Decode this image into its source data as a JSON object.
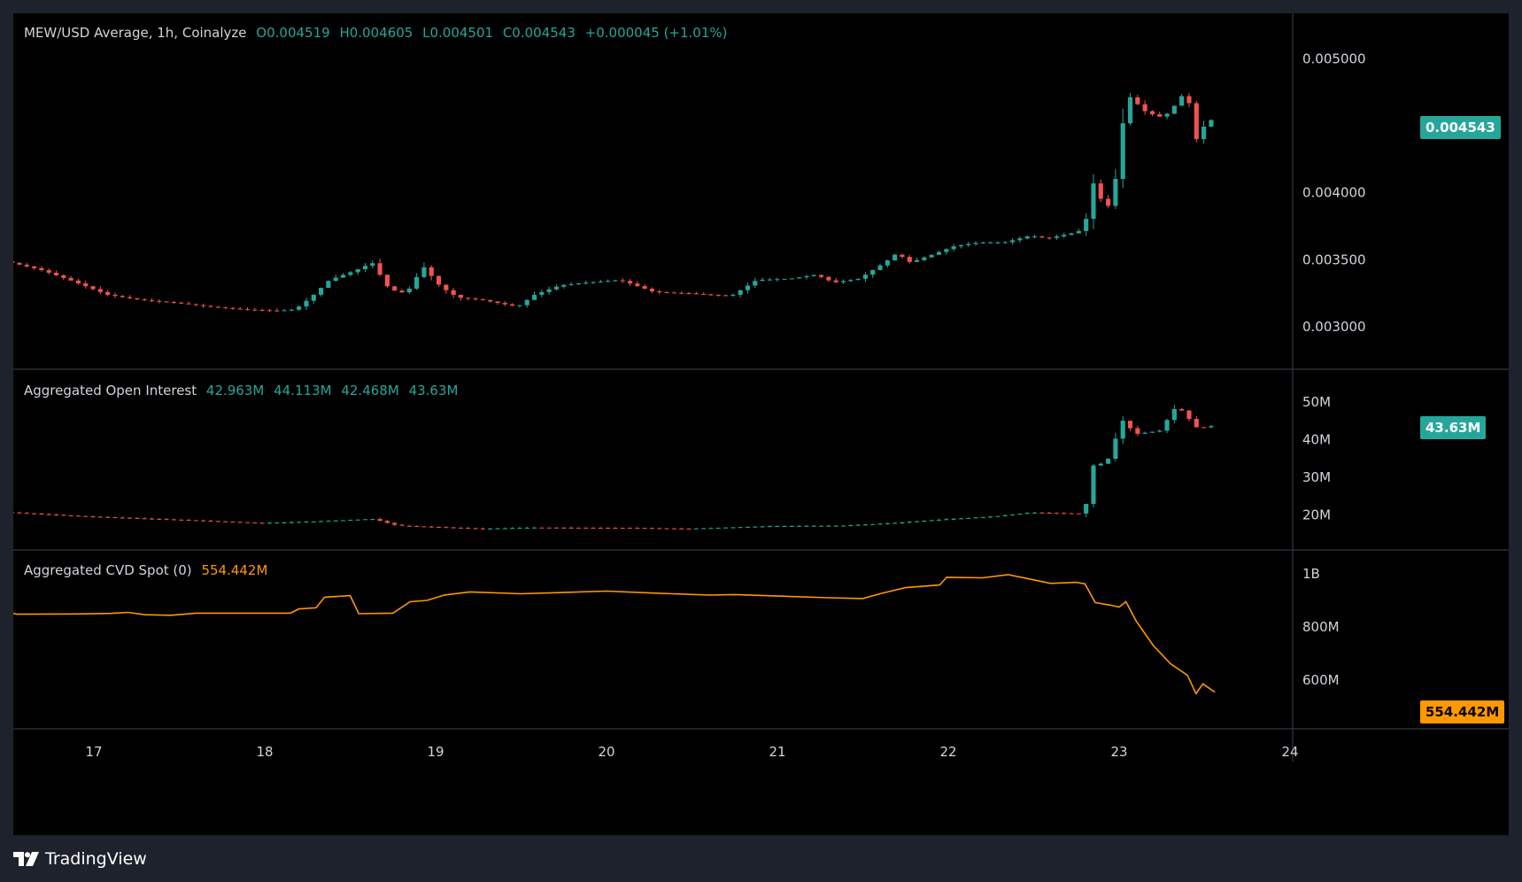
{
  "colors": {
    "up": "#26a69a",
    "down": "#ef5350",
    "cvd": "#ff9800",
    "background": "#000000",
    "frame": "#1e222d",
    "grid": "#2a2e39",
    "text": "#d1d4dc"
  },
  "main_pane": {
    "title": "MEW/USD Average, 1h, Coinalyze",
    "open": "O0.004519",
    "high": "H0.004605",
    "low": "L0.004501",
    "close": "C0.004543",
    "change": "+0.000045 (+1.01%)",
    "last_price": "0.004543"
  },
  "oi_pane": {
    "title": "Aggregated Open Interest",
    "open": "42.963M",
    "high": "44.113M",
    "low": "42.468M",
    "close": "43.63M",
    "last_value": "43.63M"
  },
  "cvd_pane": {
    "title": "Aggregated CVD Spot (0)",
    "value": "554.442M",
    "last_value": "554.442M"
  },
  "branding": {
    "name": "TradingView",
    "logo_icon": "tradingview-logo-icon"
  },
  "chart_data": [
    {
      "type": "candlestick",
      "title": "MEW/USD Average, 1h, Coinalyze",
      "ylim": [
        0.00275,
        0.00522
      ],
      "y_ticks": [
        {
          "value": 0.005,
          "label": "0.005000"
        },
        {
          "value": 0.004,
          "label": "0.004000"
        },
        {
          "value": 0.0035,
          "label": "0.003500"
        },
        {
          "value": 0.003,
          "label": "0.003000"
        }
      ],
      "x_ticks": [
        {
          "day": 17,
          "label": "17"
        },
        {
          "day": 18,
          "label": "18"
        },
        {
          "day": 19,
          "label": "19"
        },
        {
          "day": 20,
          "label": "20"
        },
        {
          "day": 21,
          "label": "21"
        },
        {
          "day": 22,
          "label": "22"
        },
        {
          "day": 23,
          "label": "23"
        },
        {
          "day": 24,
          "label": "24"
        }
      ],
      "x_start_day": 16.5,
      "close_anchors": [
        [
          16.5,
          0.00349
        ],
        [
          16.7,
          0.00343
        ],
        [
          16.9,
          0.00334
        ],
        [
          17.1,
          0.00324
        ],
        [
          17.3,
          0.0032
        ],
        [
          17.5,
          0.00318
        ],
        [
          17.7,
          0.00315
        ],
        [
          17.9,
          0.00313
        ],
        [
          18.1,
          0.00312
        ],
        [
          18.2,
          0.00313
        ],
        [
          18.3,
          0.00323
        ],
        [
          18.4,
          0.00335
        ],
        [
          18.55,
          0.00342
        ],
        [
          18.65,
          0.00348
        ],
        [
          18.75,
          0.00328
        ],
        [
          18.85,
          0.00325
        ],
        [
          18.95,
          0.00345
        ],
        [
          19.05,
          0.0033
        ],
        [
          19.15,
          0.00322
        ],
        [
          19.3,
          0.0032
        ],
        [
          19.5,
          0.00315
        ],
        [
          19.6,
          0.00324
        ],
        [
          19.75,
          0.00331
        ],
        [
          19.9,
          0.00333
        ],
        [
          20.1,
          0.00335
        ],
        [
          20.3,
          0.00326
        ],
        [
          20.5,
          0.00325
        ],
        [
          20.75,
          0.00323
        ],
        [
          20.9,
          0.00335
        ],
        [
          21.1,
          0.00336
        ],
        [
          21.25,
          0.00339
        ],
        [
          21.35,
          0.00333
        ],
        [
          21.5,
          0.00336
        ],
        [
          21.65,
          0.00348
        ],
        [
          21.72,
          0.00355
        ],
        [
          21.8,
          0.00348
        ],
        [
          21.95,
          0.00355
        ],
        [
          22.05,
          0.0036
        ],
        [
          22.2,
          0.00363
        ],
        [
          22.35,
          0.00363
        ],
        [
          22.5,
          0.00368
        ],
        [
          22.6,
          0.00366
        ],
        [
          22.75,
          0.0037
        ],
        [
          22.82,
          0.00373
        ],
        [
          22.86,
          0.0041
        ],
        [
          22.92,
          0.00394
        ],
        [
          22.96,
          0.0039
        ],
        [
          23.0,
          0.0041
        ],
        [
          23.04,
          0.0045
        ],
        [
          23.08,
          0.00472
        ],
        [
          23.18,
          0.0046
        ],
        [
          23.28,
          0.00456
        ],
        [
          23.36,
          0.00467
        ],
        [
          23.42,
          0.00478
        ],
        [
          23.46,
          0.00437
        ],
        [
          23.52,
          0.0045
        ],
        [
          23.56,
          0.00454
        ]
      ],
      "last_close": 0.004543,
      "bars_shown": 164
    },
    {
      "type": "candlestick",
      "title": "Aggregated Open Interest",
      "ylim": [
        13000000,
        54500000
      ],
      "y_ticks": [
        {
          "value": 50000000,
          "label": "50M"
        },
        {
          "value": 40000000,
          "label": "40M"
        },
        {
          "value": 30000000,
          "label": "30M"
        },
        {
          "value": 20000000,
          "label": "20M"
        }
      ],
      "close_anchors": [
        [
          16.5,
          20700000
        ],
        [
          17.0,
          19500000
        ],
        [
          17.5,
          18700000
        ],
        [
          18.0,
          17800000
        ],
        [
          18.3,
          18200000
        ],
        [
          18.65,
          18900000
        ],
        [
          18.8,
          17100000
        ],
        [
          19.3,
          16300000
        ],
        [
          19.6,
          16600000
        ],
        [
          20.2,
          16500000
        ],
        [
          20.5,
          16300000
        ],
        [
          21.0,
          17000000
        ],
        [
          21.4,
          17100000
        ],
        [
          21.7,
          17800000
        ],
        [
          22.0,
          18800000
        ],
        [
          22.3,
          19600000
        ],
        [
          22.5,
          20600000
        ],
        [
          22.82,
          20300000
        ],
        [
          22.86,
          33000000
        ],
        [
          22.95,
          34000000
        ],
        [
          23.04,
          45200000
        ],
        [
          23.12,
          41500000
        ],
        [
          23.26,
          42400000
        ],
        [
          23.36,
          49200000
        ],
        [
          23.48,
          43000000
        ],
        [
          23.56,
          43630000
        ]
      ],
      "last_close": 43630000
    },
    {
      "type": "line",
      "title": "Aggregated CVD Spot (0)",
      "ylim": [
        450000000,
        1030000000
      ],
      "y_ticks": [
        {
          "value": 1000000000,
          "label": "1B"
        },
        {
          "value": 800000000,
          "label": "800M"
        },
        {
          "value": 600000000,
          "label": "600M"
        }
      ],
      "points": [
        [
          16.5,
          855000000
        ],
        [
          16.55,
          848000000
        ],
        [
          16.9,
          849000000
        ],
        [
          17.1,
          851000000
        ],
        [
          17.2,
          855000000
        ],
        [
          17.3,
          846000000
        ],
        [
          17.45,
          844000000
        ],
        [
          17.6,
          852000000
        ],
        [
          18.15,
          852000000
        ],
        [
          18.2,
          868000000
        ],
        [
          18.3,
          872000000
        ],
        [
          18.35,
          912000000
        ],
        [
          18.5,
          918000000
        ],
        [
          18.55,
          850000000
        ],
        [
          18.75,
          852000000
        ],
        [
          18.85,
          895000000
        ],
        [
          18.95,
          900000000
        ],
        [
          19.05,
          920000000
        ],
        [
          19.2,
          932000000
        ],
        [
          19.5,
          925000000
        ],
        [
          20.0,
          935000000
        ],
        [
          20.3,
          927000000
        ],
        [
          20.6,
          920000000
        ],
        [
          20.75,
          922000000
        ],
        [
          21.3,
          910000000
        ],
        [
          21.5,
          907000000
        ],
        [
          21.6,
          925000000
        ],
        [
          21.75,
          948000000
        ],
        [
          21.95,
          958000000
        ],
        [
          21.99,
          987000000
        ],
        [
          22.2,
          985000000
        ],
        [
          22.35,
          997000000
        ],
        [
          22.45,
          984000000
        ],
        [
          22.6,
          964000000
        ],
        [
          22.75,
          968000000
        ],
        [
          22.8,
          962000000
        ],
        [
          22.86,
          892000000
        ],
        [
          22.95,
          882000000
        ],
        [
          23.0,
          875000000
        ],
        [
          23.04,
          895000000
        ],
        [
          23.1,
          822000000
        ],
        [
          23.2,
          730000000
        ],
        [
          23.3,
          662000000
        ],
        [
          23.4,
          618000000
        ],
        [
          23.45,
          549000000
        ],
        [
          23.49,
          586000000
        ],
        [
          23.56,
          554442000
        ]
      ],
      "last_value": 554442000
    }
  ]
}
